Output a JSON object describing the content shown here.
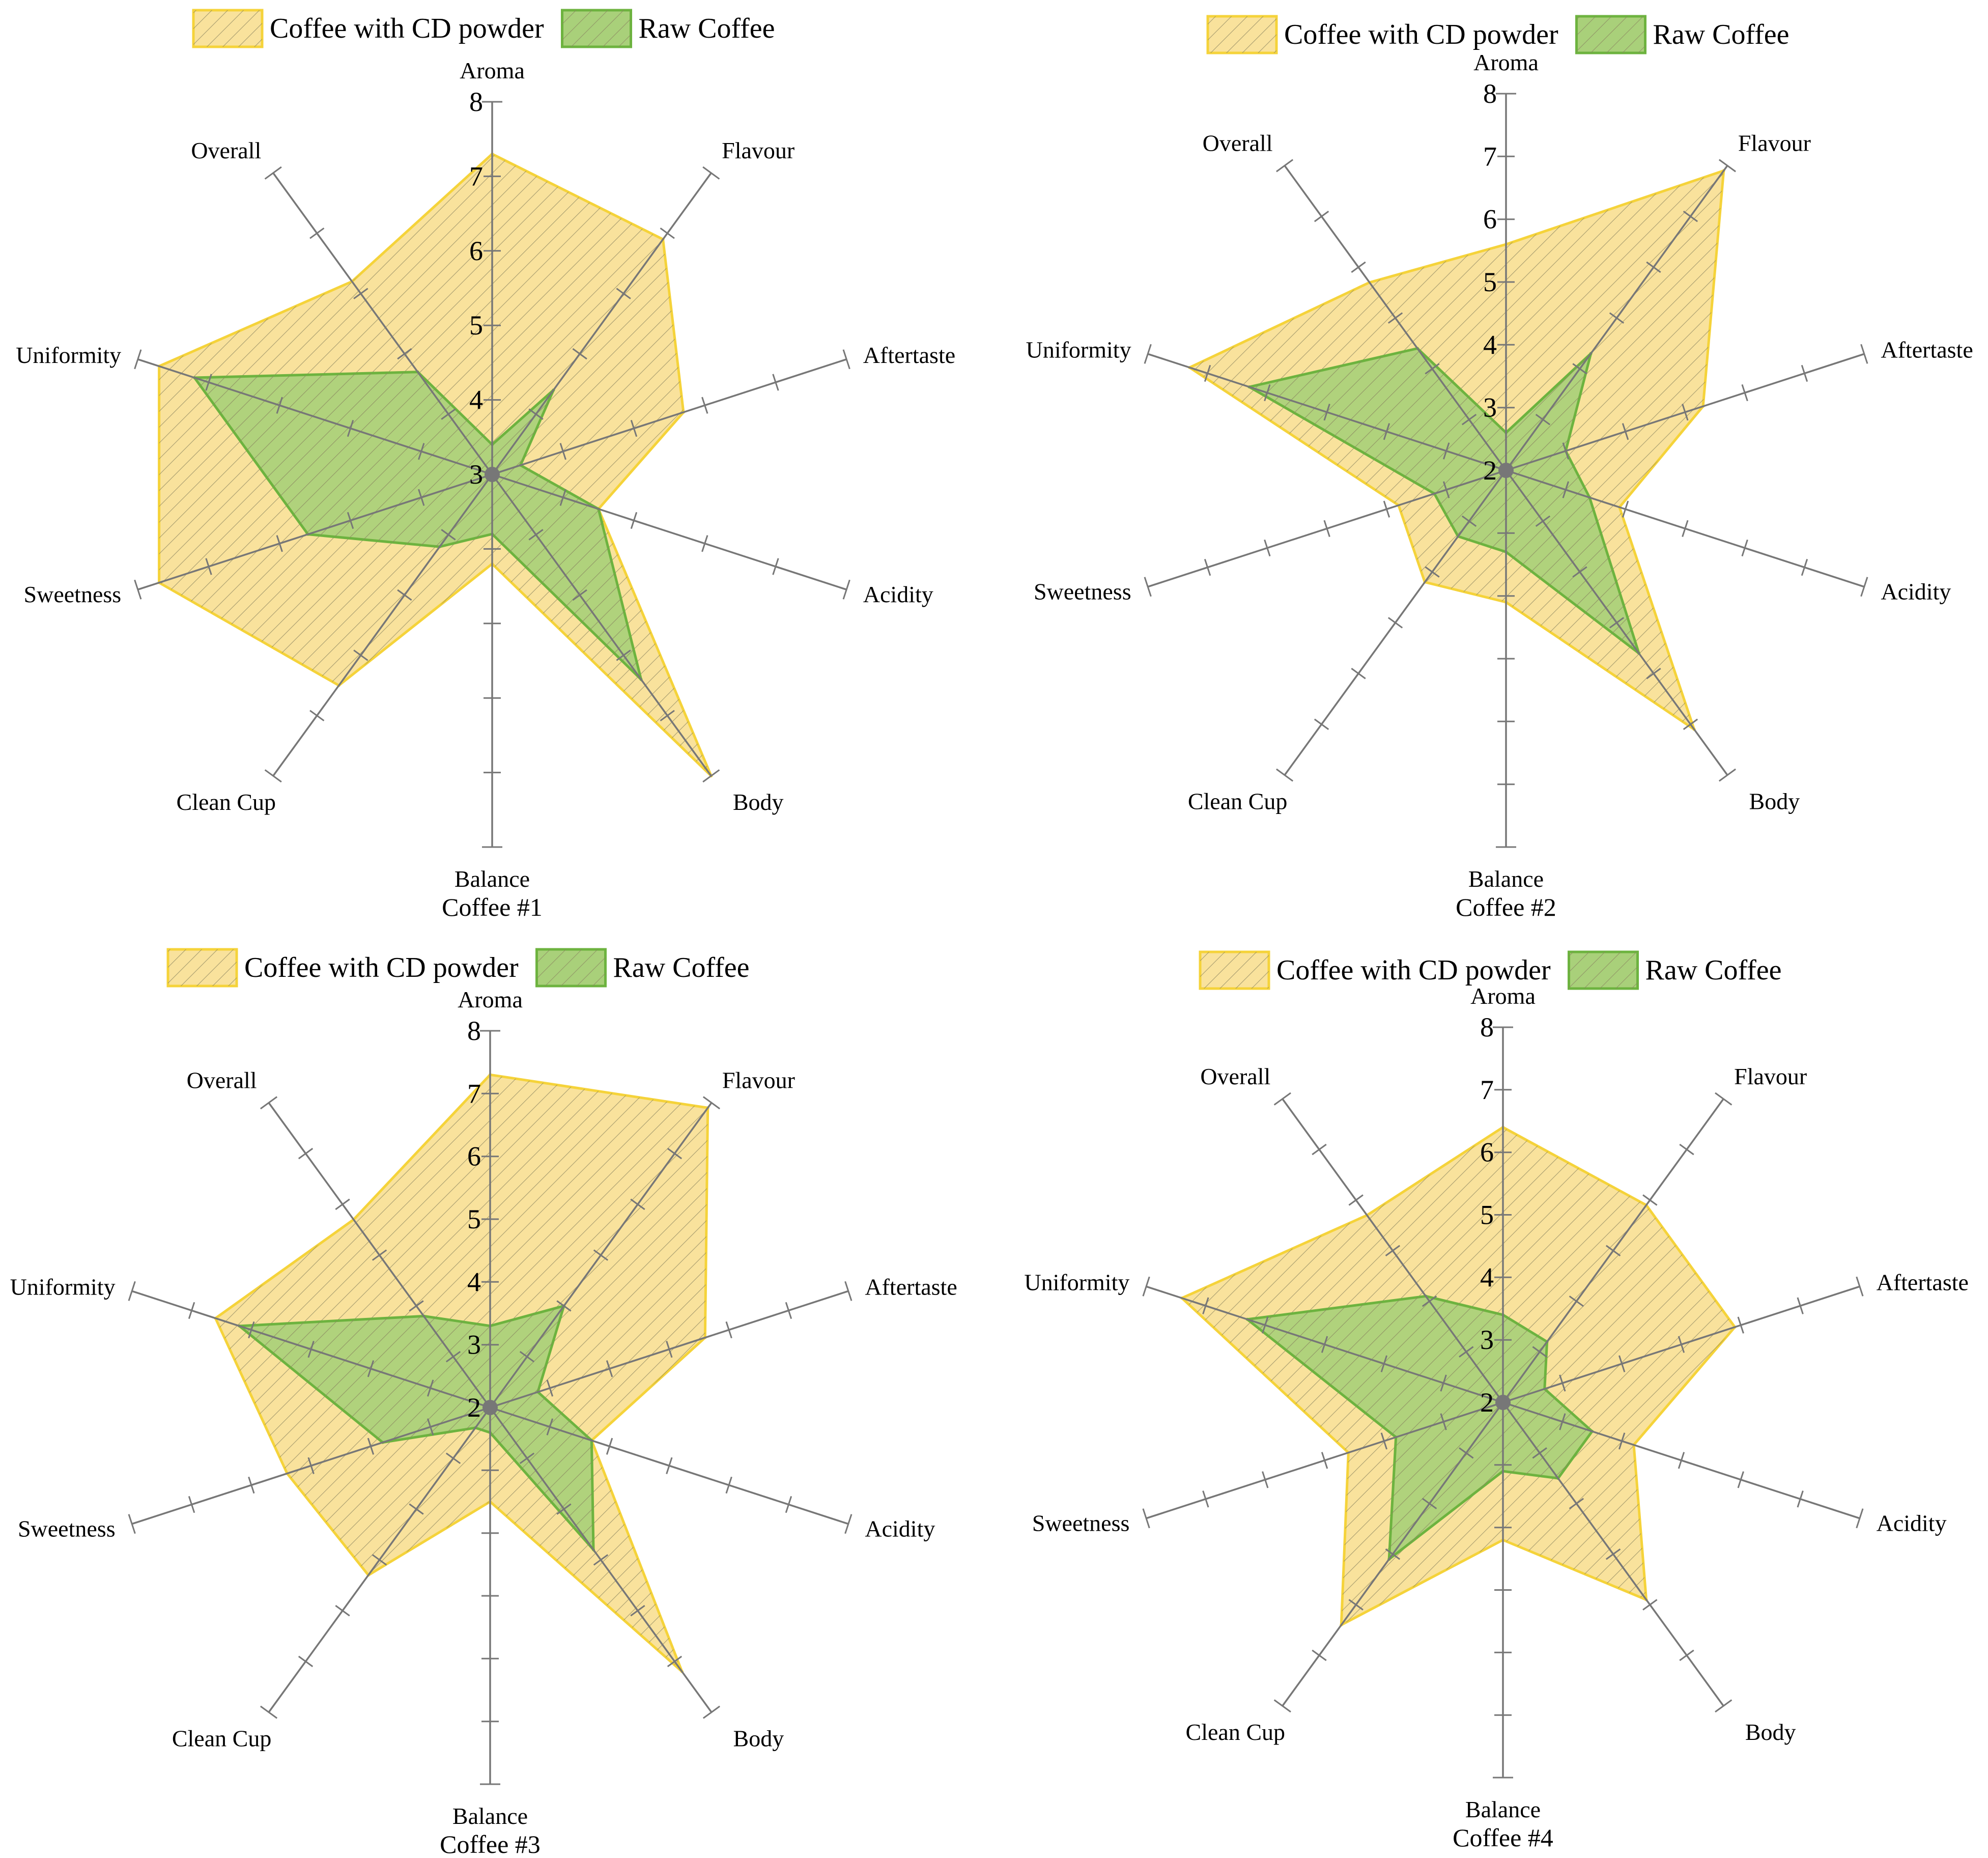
{
  "figure": {
    "description_title": "Coffee cupping radar charts"
  },
  "colors": {
    "cd_fill": "#f9e29c",
    "cd_stroke": "#f5d33a",
    "raw_fill": "#a9d07a",
    "raw_stroke": "#6db33f",
    "axis": "#777777",
    "center": "#777777",
    "hatch": "#8a8460"
  },
  "legend": {
    "cd_label": "Coffee with CD powder",
    "raw_label": "Raw Coffee"
  },
  "chart_data": [
    {
      "type": "radar",
      "title": "Coffee #1",
      "axes": [
        "Aroma",
        "Flavour",
        "Aftertaste",
        "Acidity",
        "Body",
        "Balance",
        "Clean Cup",
        "Sweetness",
        "Uniformity",
        "Overall"
      ],
      "range": [
        3,
        8
      ],
      "tick_labels": [
        "3",
        "4",
        "5",
        "6",
        "7",
        "8"
      ],
      "series": [
        {
          "name": "Coffee with CD powder",
          "values": [
            7.3,
            6.9,
            5.7,
            4.5,
            8.0,
            4.2,
            6.5,
            7.7,
            7.7,
            6.2
          ]
        },
        {
          "name": "Raw Coffee",
          "values": [
            3.4,
            4.4,
            3.4,
            4.5,
            6.4,
            3.8,
            4.2,
            5.6,
            7.2,
            4.7
          ]
        }
      ]
    },
    {
      "type": "radar",
      "title": "Coffee #2",
      "axes": [
        "Aroma",
        "Flavour",
        "Aftertaste",
        "Acidity",
        "Body",
        "Balance",
        "Clean Cup",
        "Sweetness",
        "Uniformity",
        "Overall"
      ],
      "range": [
        2,
        8
      ],
      "tick_labels": [
        "2",
        "3",
        "4",
        "5",
        "6",
        "7",
        "8"
      ],
      "series": [
        {
          "name": "Coffee with CD powder",
          "values": [
            5.6,
            7.9,
            5.3,
            3.9,
            7.1,
            4.1,
            4.2,
            3.8,
            7.3,
            5.7
          ]
        },
        {
          "name": "Raw Coffee",
          "values": [
            2.6,
            4.3,
            3.0,
            3.4,
            5.6,
            3.3,
            3.3,
            3.2,
            6.3,
            4.4
          ]
        }
      ]
    },
    {
      "type": "radar",
      "title": "Coffee #3",
      "axes": [
        "Aroma",
        "Flavour",
        "Aftertaste",
        "Acidity",
        "Body",
        "Balance",
        "Clean Cup",
        "Sweetness",
        "Uniformity",
        "Overall"
      ],
      "range": [
        2,
        8
      ],
      "tick_labels": [
        "2",
        "3",
        "4",
        "5",
        "6",
        "7",
        "8"
      ],
      "series": [
        {
          "name": "Coffee with CD powder",
          "values": [
            7.3,
            7.9,
            5.6,
            3.7,
            7.2,
            3.5,
            5.3,
            5.4,
            6.6,
            5.7
          ]
        },
        {
          "name": "Raw Coffee",
          "values": [
            3.3,
            4.0,
            2.8,
            3.7,
            4.8,
            2.4,
            2.4,
            3.8,
            6.2,
            3.8
          ]
        }
      ]
    },
    {
      "type": "radar",
      "title": "Coffee #4",
      "axes": [
        "Aroma",
        "Flavour",
        "Aftertaste",
        "Acidity",
        "Body",
        "Balance",
        "Clean Cup",
        "Sweetness",
        "Uniformity",
        "Overall"
      ],
      "range": [
        2,
        8
      ],
      "tick_labels": [
        "2",
        "3",
        "4",
        "5",
        "6",
        "7",
        "8"
      ],
      "series": [
        {
          "name": "Coffee with CD powder",
          "values": [
            6.4,
            5.9,
            5.9,
            4.2,
            5.9,
            4.2,
            6.4,
            4.6,
            7.4,
            5.7
          ]
        },
        {
          "name": "Raw Coffee",
          "values": [
            3.4,
            3.2,
            2.7,
            3.5,
            3.5,
            3.1,
            5.1,
            3.8,
            6.3,
            4.1
          ]
        }
      ]
    }
  ]
}
